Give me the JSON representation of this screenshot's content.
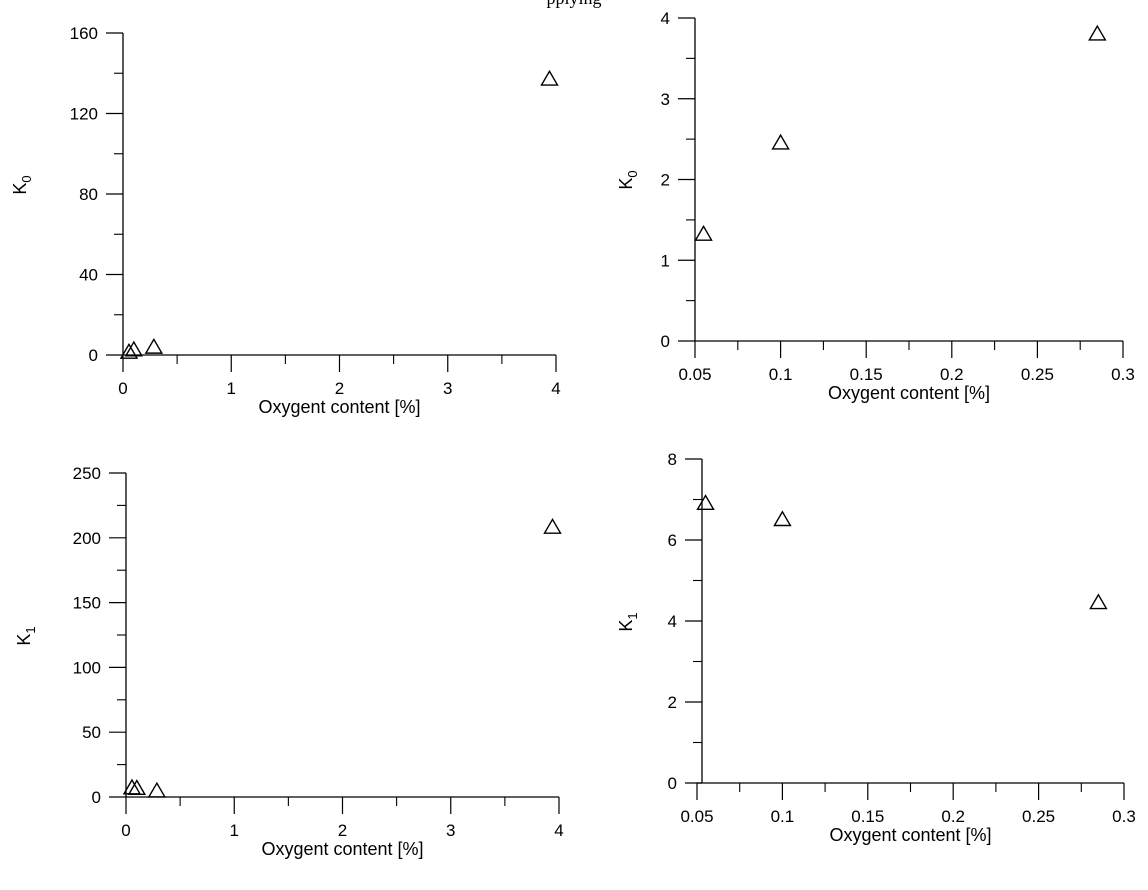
{
  "figure": {
    "top_fragment": "pplying"
  },
  "chart_data": [
    {
      "id": "top-left",
      "type": "scatter",
      "marker": "triangle-open",
      "xlabel": "Oxygent content [%]",
      "ylabel": "K",
      "ylabel_sub": "0",
      "xlim": [
        0,
        4
      ],
      "ylim": [
        0,
        160
      ],
      "xticks": [
        0,
        1,
        2,
        3,
        4
      ],
      "xticklabels": [
        "0",
        "1",
        "2",
        "3",
        "4"
      ],
      "yticks": [
        0,
        40,
        80,
        120,
        160
      ],
      "yticklabels": [
        "0",
        "40",
        "80",
        "120",
        "160"
      ],
      "points": [
        {
          "x": 0.055,
          "y": 1.3
        },
        {
          "x": 0.1,
          "y": 2.45
        },
        {
          "x": 0.285,
          "y": 3.8
        },
        {
          "x": 3.94,
          "y": 137
        }
      ]
    },
    {
      "id": "top-right",
      "type": "scatter",
      "marker": "triangle-open",
      "xlabel": "Oxygent content [%]",
      "ylabel": "K",
      "ylabel_sub": "0",
      "xlim": [
        0.05,
        0.3
      ],
      "ylim": [
        0,
        4
      ],
      "xticks": [
        0.05,
        0.1,
        0.15,
        0.2,
        0.25,
        0.3
      ],
      "xticklabels": [
        "0.05",
        "0.1",
        "0.15",
        "0.2",
        "0.25",
        "0.3"
      ],
      "yticks": [
        0,
        1,
        2,
        3,
        4
      ],
      "yticklabels": [
        "0",
        "1",
        "2",
        "3",
        "4"
      ],
      "points": [
        {
          "x": 0.055,
          "y": 1.32
        },
        {
          "x": 0.1,
          "y": 2.45
        },
        {
          "x": 0.285,
          "y": 3.8
        }
      ]
    },
    {
      "id": "bottom-left",
      "type": "scatter",
      "marker": "triangle-open",
      "xlabel": "Oxygent content [%]",
      "ylabel": "K",
      "ylabel_sub": "1",
      "xlim": [
        0,
        4
      ],
      "ylim": [
        0,
        250
      ],
      "xticks": [
        0,
        1,
        2,
        3,
        4
      ],
      "xticklabels": [
        "0",
        "1",
        "2",
        "3",
        "4"
      ],
      "yticks": [
        0,
        50,
        100,
        150,
        200,
        250
      ],
      "yticklabels": [
        "0",
        "50",
        "100",
        "150",
        "200",
        "250"
      ],
      "points": [
        {
          "x": 0.055,
          "y": 6.9
        },
        {
          "x": 0.1,
          "y": 6.5
        },
        {
          "x": 0.285,
          "y": 4.5
        },
        {
          "x": 3.94,
          "y": 208
        }
      ]
    },
    {
      "id": "bottom-right",
      "type": "scatter",
      "marker": "triangle-open",
      "xlabel": "Oxygent content [%]",
      "ylabel": "K",
      "ylabel_sub": "1",
      "xlim": [
        0.05,
        0.3
      ],
      "ylim": [
        0,
        8
      ],
      "xticks": [
        0.05,
        0.1,
        0.15,
        0.2,
        0.25,
        0.3
      ],
      "xticklabels": [
        "0.05",
        "0.1",
        "0.15",
        "0.2",
        "0.25",
        "0.3"
      ],
      "yticks": [
        0,
        2,
        4,
        6,
        8
      ],
      "yticklabels": [
        "0",
        "2",
        "4",
        "6",
        "8"
      ],
      "points": [
        {
          "x": 0.055,
          "y": 6.9
        },
        {
          "x": 0.1,
          "y": 6.5
        },
        {
          "x": 0.285,
          "y": 4.45
        }
      ]
    }
  ]
}
